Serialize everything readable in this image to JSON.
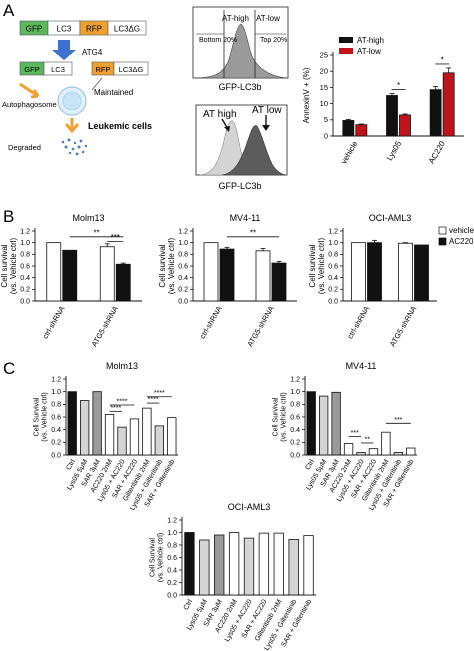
{
  "panel_labels": [
    "A",
    "B",
    "C"
  ],
  "schematic": {
    "construct": [
      "GFP",
      "LC3",
      "RFP",
      "LC3ΔG"
    ],
    "enzyme": "ATG4",
    "product_left": [
      "GFP",
      "LC3"
    ],
    "product_right": [
      "RFP",
      "LC3ΔG"
    ],
    "maintained": "Maintained",
    "autophagosome": "Autophagosome",
    "leukemic": "Leukemic cells",
    "degraded": "Degraded"
  },
  "flow_top": {
    "at_high": "AT-high",
    "at_low": "AT-low",
    "bottom": "Bottom 20%",
    "top": "Top 20%",
    "xlabel": "GFP-LC3b"
  },
  "flow_bottom": {
    "at_high": "AT high",
    "at_low": "AT low",
    "xlabel": "GFP-LC3b"
  },
  "colors": {
    "black": "#111111",
    "red": "#c0141c",
    "white": "#ffffff",
    "light_grey": "#d4d4d4",
    "mid_grey": "#9a9a9a",
    "dark_grey": "#5c5c5c",
    "gfp_green": "#5cb85c",
    "rfp_orange": "#f0a030",
    "lc3_fill": "#ffffff"
  },
  "chart_data": [
    {
      "id": "annexin",
      "type": "bar",
      "ylabel": "AnnexinV + (%)",
      "ylim": [
        0,
        25
      ],
      "yticks": [
        0,
        5,
        10,
        15,
        20,
        25
      ],
      "categories": [
        "vehicle",
        "Lys05",
        "AC220"
      ],
      "series": [
        {
          "name": "AT-high",
          "color": "black",
          "values": [
            4.8,
            12.5,
            14.3
          ],
          "err": [
            0.3,
            0.6,
            1.0
          ]
        },
        {
          "name": "AT-low",
          "color": "red",
          "values": [
            3.5,
            6.5,
            19.5
          ],
          "err": [
            0.2,
            0.3,
            1.5
          ]
        }
      ],
      "legend": "top-left",
      "sig": [
        {
          "cat": 1,
          "label": "*"
        },
        {
          "cat": 2,
          "label": "*"
        }
      ]
    },
    {
      "id": "molm13_b",
      "type": "bar",
      "title": "Molm13",
      "ylabel": "Cell survival\n(vs. Vehicle ctrl)",
      "ylim": [
        0,
        1.2
      ],
      "yticks": [
        "0.0",
        "0.2",
        "0.4",
        "0.6",
        "0.8",
        "1.0",
        "1.2"
      ],
      "categories": [
        "ctrl-shRNA",
        "ATG5-shRNA"
      ],
      "series": [
        {
          "name": "vehicle",
          "color": "white",
          "values": [
            1.0,
            0.93
          ],
          "err": [
            0,
            0.05
          ]
        },
        {
          "name": "AC220",
          "color": "black",
          "values": [
            0.87,
            0.63
          ],
          "err": [
            0,
            0.02
          ]
        }
      ],
      "sig": [
        {
          "label": "**"
        },
        {
          "label": "***"
        }
      ]
    },
    {
      "id": "mv411_b",
      "type": "bar",
      "title": "MV4-11",
      "ylabel": "Cell survival\n(vs. Vehicle ctrl)",
      "ylim": [
        0,
        1.2
      ],
      "yticks": [
        "0.0",
        "0.2",
        "0.4",
        "0.6",
        "0.8",
        "1.0",
        "1.2"
      ],
      "categories": [
        "ctrl-shRNA",
        "ATG5-shRNA"
      ],
      "series": [
        {
          "name": "vehicle",
          "color": "white",
          "values": [
            1.0,
            0.86
          ],
          "err": [
            0,
            0.04
          ]
        },
        {
          "name": "AC220",
          "color": "black",
          "values": [
            0.89,
            0.65
          ],
          "err": [
            0.03,
            0.03
          ]
        }
      ],
      "sig": [
        {
          "label": "**"
        }
      ]
    },
    {
      "id": "ociaml3_b",
      "type": "bar",
      "title": "OCI-AML3",
      "ylabel": "Cell survival\n(vs. Vehicle ctrl)",
      "ylim": [
        0,
        1.2
      ],
      "yticks": [
        "0.0",
        "0.2",
        "0.4",
        "0.6",
        "0.8",
        "1.0",
        "1.2"
      ],
      "categories": [
        "ctrl-shRNA",
        "ATG5-shRNA"
      ],
      "series": [
        {
          "name": "vehicle",
          "color": "white",
          "values": [
            1.0,
            0.99
          ],
          "err": [
            0,
            0.01
          ]
        },
        {
          "name": "AC220",
          "color": "black",
          "values": [
            1.0,
            0.96
          ],
          "err": [
            0.04,
            0
          ]
        }
      ],
      "legend_series": [
        "vehicle",
        "AC220"
      ],
      "sig": []
    },
    {
      "id": "molm13_c",
      "type": "bar",
      "title": "Molm13",
      "ylabel": "Cell Survival\n(vs. Vehicle ctrl)",
      "ylim": [
        0,
        1.2
      ],
      "yticks": [
        "0.0",
        "0.2",
        "0.4",
        "0.6",
        "0.8",
        "1.0",
        "1.2"
      ],
      "categories": [
        "Ctrl",
        "Lys05 5μM",
        "SAR 3μM",
        "AC220 2nM",
        "Lys05 + AC220",
        "SAR + AC220",
        "Gilteritinib 2nM",
        "Lys05 + Gilteritinib",
        "SAR + Gilteritinib"
      ],
      "values": [
        1.0,
        0.86,
        1.0,
        0.64,
        0.44,
        0.57,
        0.74,
        0.46,
        0.59
      ],
      "fills": [
        "black",
        "light_grey",
        "mid_grey",
        "white",
        "light_grey",
        "white",
        "white",
        "light_grey",
        "white"
      ],
      "sig": [
        "****",
        "****",
        "****",
        "****"
      ]
    },
    {
      "id": "mv411_c",
      "type": "bar",
      "title": "MV4-11",
      "ylabel": "Cell Survival\n(vs. Vehicle ctrl)",
      "ylim": [
        0,
        1.2
      ],
      "yticks": [
        "0.0",
        "0.2",
        "0.4",
        "0.6",
        "0.8",
        "1.0",
        "1.2"
      ],
      "categories": [
        "Ctrl",
        "Lys05 5μM",
        "SAR 3μM",
        "AC220 2nM",
        "Lys05 + AC220",
        "SAR + AC220",
        "Gilteritinib 2nM",
        "Lys05 + Gilteritinib",
        "SAR + Gilteritinib"
      ],
      "values": [
        1.0,
        0.93,
        0.99,
        0.18,
        0.04,
        0.1,
        0.36,
        0.04,
        0.11
      ],
      "fills": [
        "black",
        "light_grey",
        "mid_grey",
        "white",
        "light_grey",
        "white",
        "white",
        "light_grey",
        "white"
      ],
      "sig": [
        "***",
        "**",
        "***"
      ]
    },
    {
      "id": "ociaml3_c",
      "type": "bar",
      "title": "OCI-AML3",
      "ylabel": "Cell Survival\n(vs. Vehicle ctrl)",
      "ylim": [
        0,
        1.2
      ],
      "yticks": [
        "0.0",
        "0.2",
        "0.4",
        "0.6",
        "0.8",
        "1.0",
        "1.2"
      ],
      "categories": [
        "Ctrl",
        "Lys05 5μM",
        "SAR 3μM",
        "AC220 2nM",
        "Lys05 + AC220",
        "SAR + AC220",
        "Gilteritinib 2nM",
        "Lys05 + Gilteritinib",
        "SAR + Gilteritinib"
      ],
      "values": [
        1.0,
        0.88,
        0.96,
        1.0,
        0.91,
        0.99,
        0.99,
        0.89,
        0.95
      ],
      "fills": [
        "black",
        "light_grey",
        "mid_grey",
        "white",
        "light_grey",
        "white",
        "white",
        "light_grey",
        "white"
      ],
      "sig": []
    }
  ]
}
